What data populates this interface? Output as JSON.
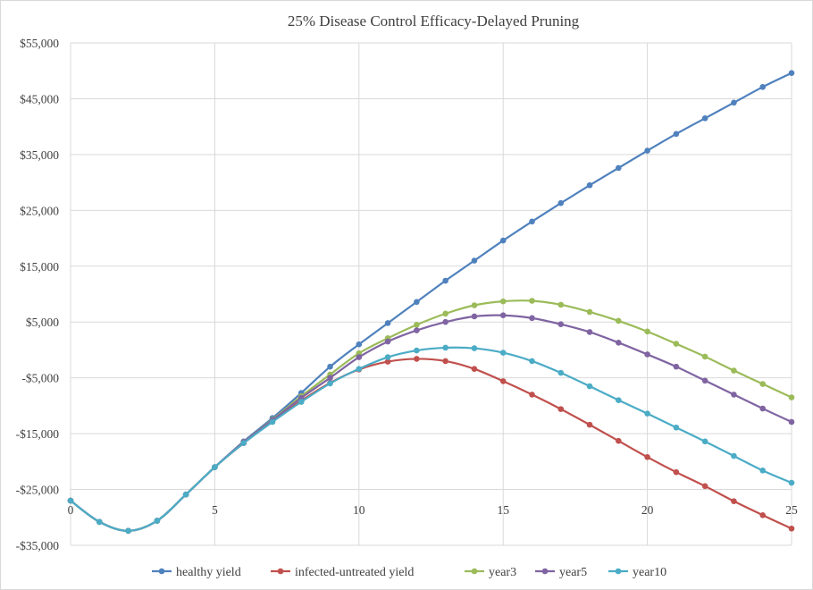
{
  "chart_data": {
    "type": "line",
    "title": "25% Disease Control Efficacy-Delayed  Pruning",
    "xlabel": "",
    "ylabel": "",
    "xlim": [
      0,
      25
    ],
    "ylim": [
      -35000,
      55000
    ],
    "x_ticks": [
      0,
      5,
      10,
      15,
      20,
      25
    ],
    "y_ticks": [
      -35000,
      -25000,
      -15000,
      -5000,
      5000,
      15000,
      25000,
      35000,
      45000,
      55000
    ],
    "y_tick_labels": [
      "-$35,000",
      "-$25,000",
      "-$15,000",
      "-$5,000",
      "$5,000",
      "$15,000",
      "$25,000",
      "$35,000",
      "$45,000",
      "$55,000"
    ],
    "grid": true,
    "legend_position": "bottom",
    "x": [
      0,
      1,
      2,
      3,
      4,
      5,
      6,
      7,
      8,
      9,
      10,
      11,
      12,
      13,
      14,
      15,
      16,
      17,
      18,
      19,
      20,
      21,
      22,
      23,
      24,
      25
    ],
    "series": [
      {
        "name": "healthy yield",
        "color": "#4f81bd",
        "values": [
          -27000,
          -30800,
          -32400,
          -30600,
          -25900,
          -21000,
          -16400,
          -12200,
          -7700,
          -3000,
          1000,
          4800,
          8600,
          12400,
          16000,
          19600,
          23000,
          26300,
          29500,
          32600,
          35700,
          38700,
          41500,
          44300,
          47100,
          49600
        ]
      },
      {
        "name": "infected-untreated yield",
        "color": "#c0504d",
        "values": [
          -27000,
          -30800,
          -32400,
          -30600,
          -25900,
          -21000,
          -16700,
          -12800,
          -9100,
          -5900,
          -3500,
          -2100,
          -1600,
          -2000,
          -3400,
          -5600,
          -8000,
          -10600,
          -13400,
          -16300,
          -19200,
          -21900,
          -24400,
          -27100,
          -29600,
          -32000
        ]
      },
      {
        "name": "year3",
        "color": "#9bbb59",
        "values": [
          -27000,
          -30800,
          -32400,
          -30600,
          -25900,
          -21000,
          -16500,
          -12500,
          -8300,
          -4400,
          -600,
          2100,
          4500,
          6500,
          8000,
          8700,
          8800,
          8100,
          6800,
          5200,
          3300,
          1100,
          -1200,
          -3700,
          -6100,
          -8500
        ]
      },
      {
        "name": "year5",
        "color": "#8064a2",
        "values": [
          -27000,
          -30800,
          -32400,
          -30600,
          -25900,
          -21000,
          -16500,
          -12600,
          -8600,
          -5000,
          -1300,
          1500,
          3500,
          5000,
          6000,
          6200,
          5700,
          4600,
          3200,
          1300,
          -800,
          -3000,
          -5500,
          -8000,
          -10500,
          -12900
        ]
      },
      {
        "name": "year10",
        "color": "#4bacc6",
        "values": [
          -27000,
          -30800,
          -32400,
          -30600,
          -25900,
          -21000,
          -16700,
          -12900,
          -9300,
          -6000,
          -3400,
          -1300,
          -100,
          400,
          300,
          -500,
          -2000,
          -4100,
          -6500,
          -9000,
          -11400,
          -13900,
          -16400,
          -19000,
          -21600,
          -23800
        ]
      }
    ]
  }
}
